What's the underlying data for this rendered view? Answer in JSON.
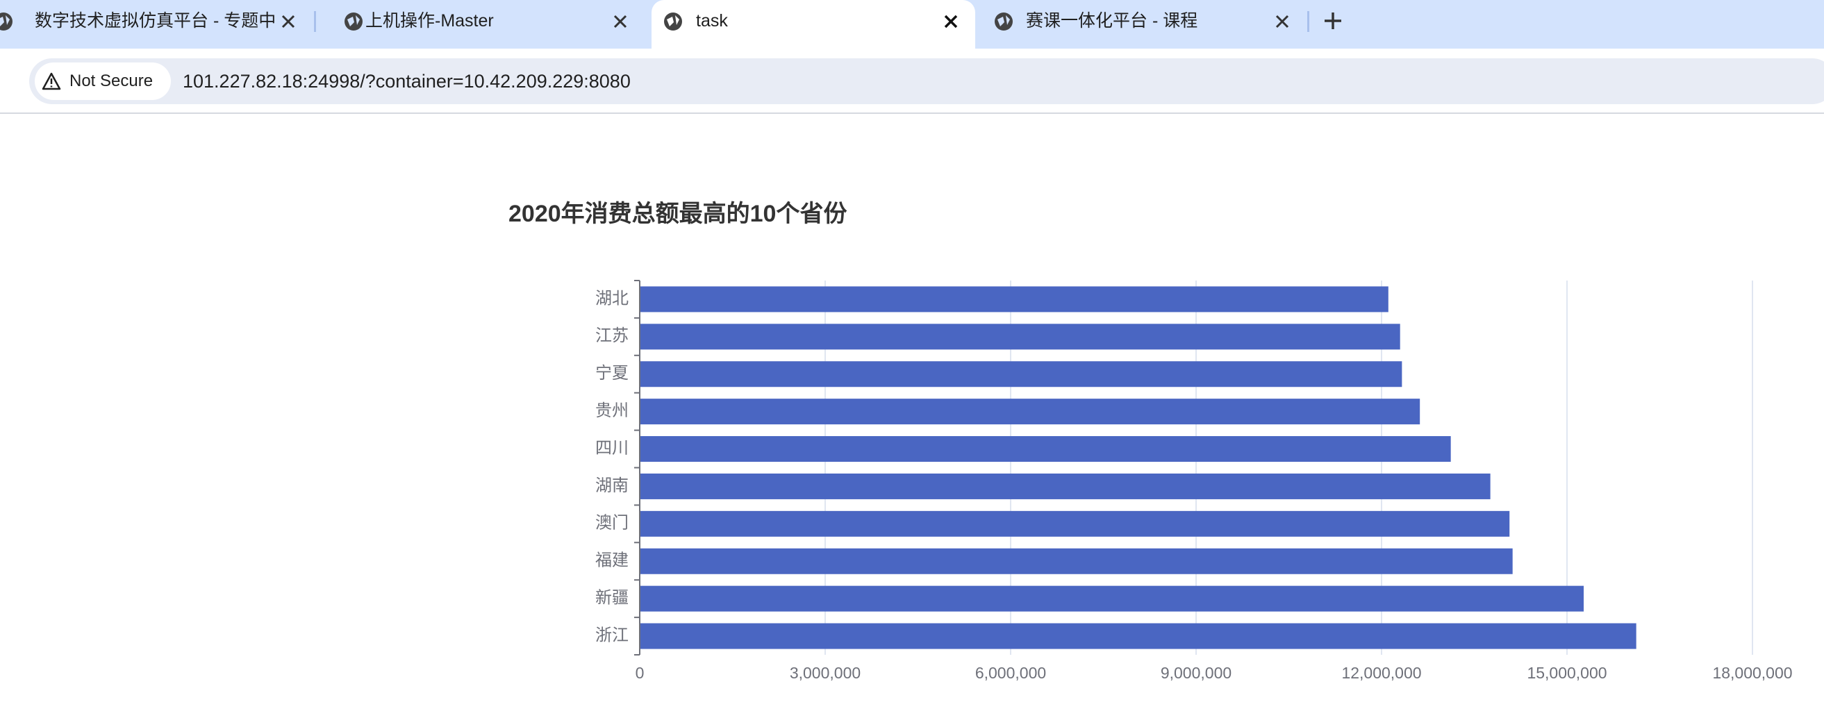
{
  "browser": {
    "tabs": [
      "数字技术虚拟仿真平台 - 专题中",
      "上机操作-Master",
      "task",
      "赛课一体化平台 - 课程"
    ],
    "security": "Not Secure",
    "url": "101.227.82.18:24998/?container=10.42.209.229:8080"
  },
  "chart_data": {
    "type": "hbar",
    "title": "2020年消费总额最高的10个省份",
    "categories": [
      "湖北",
      "江苏",
      "宁夏",
      "贵州",
      "四川",
      "湖南",
      "澳门",
      "福建",
      "新疆",
      "浙江"
    ],
    "values": [
      12110000,
      12300000,
      12330000,
      12620000,
      13120000,
      13760000,
      14070000,
      14120000,
      15270000,
      16120000
    ],
    "color": "#4a66c2",
    "xlim": [
      0,
      18000000
    ],
    "xticks": [
      0,
      {
        "value": 3000000,
        "label": "3,000,000"
      },
      {
        "value": 6000000,
        "label": "6,000,000"
      },
      {
        "value": 9000000,
        "label": "9,000,000"
      },
      {
        "value": 12000000,
        "label": "12,000,000"
      },
      {
        "value": 15000000,
        "label": "15,000,000"
      },
      {
        "value": 18000000,
        "label": "18,000,000"
      }
    ],
    "grid": true
  }
}
